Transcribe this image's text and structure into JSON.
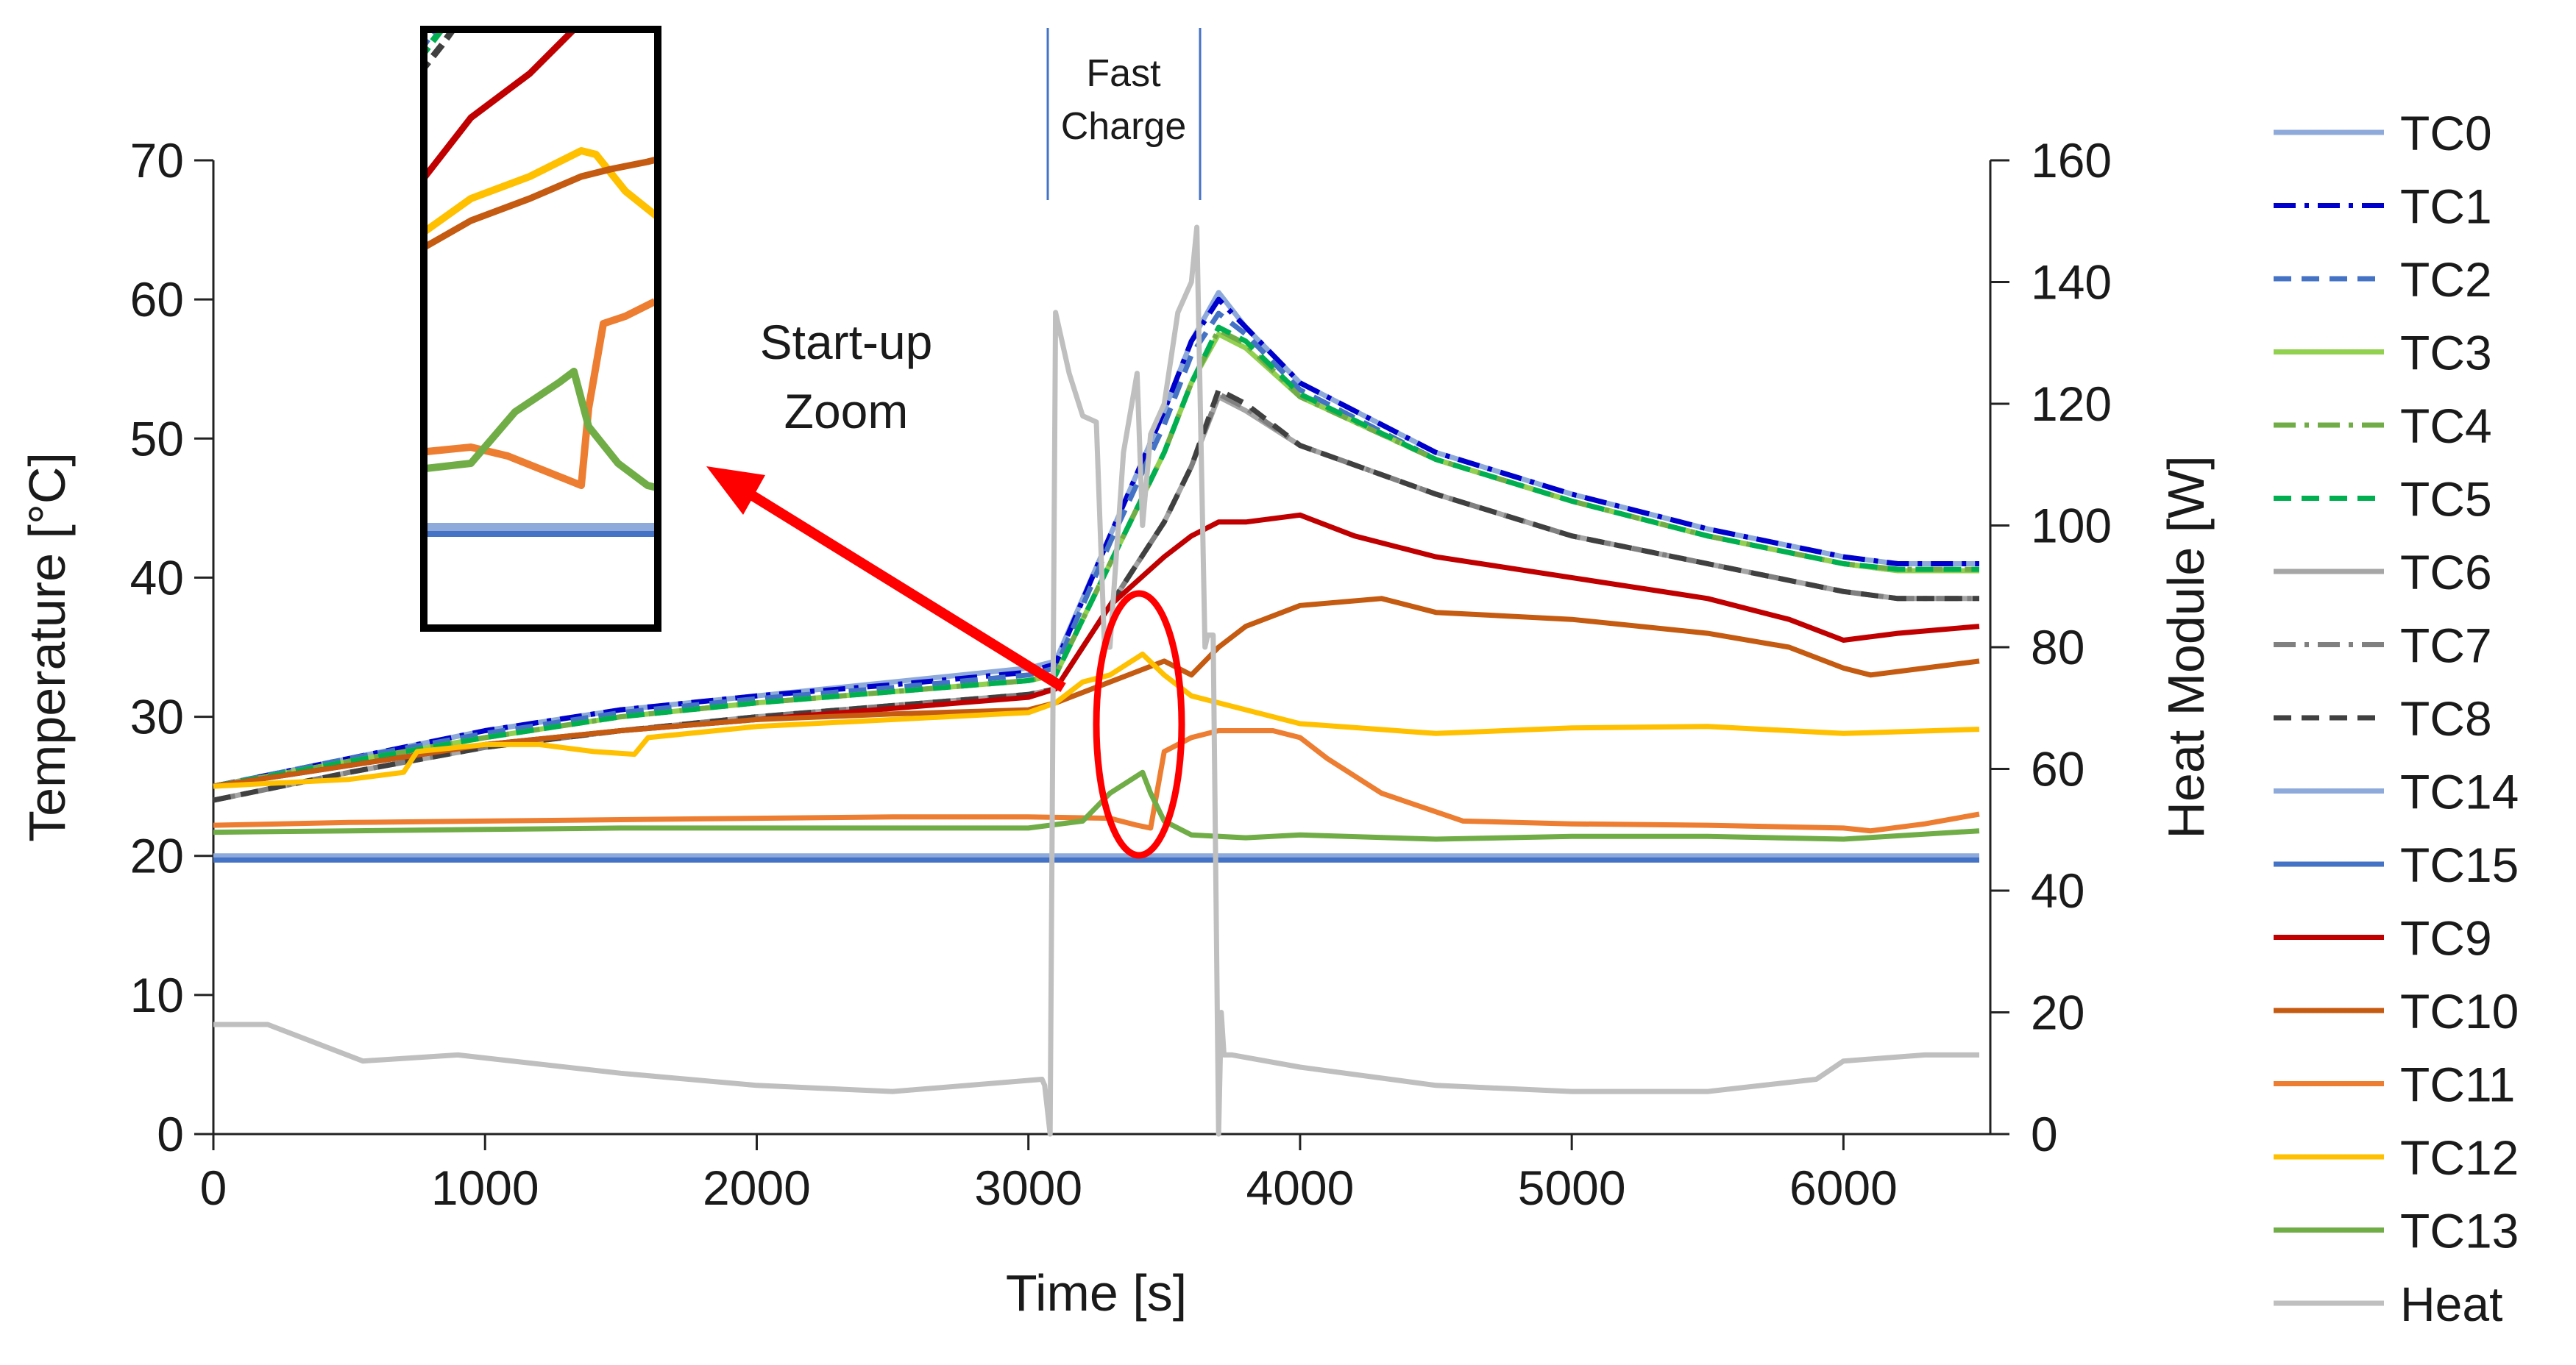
{
  "chart_data": {
    "type": "line",
    "title": "",
    "xlabel": "Time [s]",
    "ylabel": "Temperature [°C]",
    "y2label": "Heat Module [W]",
    "xlim": [
      0,
      6500
    ],
    "ylim": [
      0,
      70
    ],
    "y2lim": [
      0,
      160
    ],
    "x_ticks": [
      0,
      1000,
      2000,
      3000,
      4000,
      5000,
      6000
    ],
    "y_ticks": [
      0,
      10,
      20,
      30,
      40,
      50,
      60,
      70
    ],
    "y2_ticks": [
      0,
      20,
      40,
      60,
      80,
      100,
      120,
      140,
      160
    ],
    "legend_position": "right",
    "series": [
      {
        "name": "TC0",
        "axis": "left",
        "color": "#8eaadb",
        "dash": "solid",
        "x": [
          0,
          500,
          1000,
          1500,
          2000,
          2500,
          3000,
          3100,
          3300,
          3500,
          3600,
          3700,
          3800,
          4000,
          4500,
          5000,
          5500,
          6000,
          6200,
          6500
        ],
        "values": [
          25,
          27,
          29,
          30.5,
          31.5,
          32.5,
          33.5,
          34,
          43,
          52,
          57,
          60.5,
          58,
          54,
          49,
          46,
          43.5,
          41.5,
          41,
          41
        ]
      },
      {
        "name": "TC1",
        "axis": "left",
        "color": "#0000cc",
        "dash": "dashdot",
        "x": [
          0,
          500,
          1000,
          1500,
          2000,
          2500,
          3000,
          3100,
          3300,
          3500,
          3600,
          3700,
          3800,
          4000,
          4500,
          5000,
          5500,
          6000,
          6200,
          6500
        ],
        "values": [
          25,
          27,
          29,
          30.5,
          31.5,
          32.3,
          33.2,
          33.8,
          43,
          52,
          57,
          60,
          58,
          54,
          49,
          46,
          43.5,
          41.5,
          41,
          41
        ]
      },
      {
        "name": "TC2",
        "axis": "left",
        "color": "#4472c4",
        "dash": "dash",
        "x": [
          0,
          500,
          1000,
          1500,
          2000,
          2500,
          3000,
          3100,
          3300,
          3500,
          3600,
          3700,
          3800,
          4000,
          4500,
          5000,
          5500,
          6000,
          6200,
          6500
        ],
        "values": [
          25,
          27,
          28.8,
          30.3,
          31.3,
          32.1,
          33,
          33.5,
          42.5,
          51,
          56,
          59,
          57.5,
          53.5,
          48.5,
          45.5,
          43,
          41,
          40.5,
          40.5
        ]
      },
      {
        "name": "TC3",
        "axis": "left",
        "color": "#92d050",
        "dash": "solid",
        "x": [
          0,
          500,
          1000,
          1500,
          2000,
          2500,
          3000,
          3100,
          3300,
          3500,
          3600,
          3700,
          3800,
          4000,
          4500,
          5000,
          5500,
          6000,
          6200,
          6500
        ],
        "values": [
          25,
          26.8,
          28.5,
          30,
          31,
          31.8,
          32.6,
          33,
          41,
          49,
          54,
          57.5,
          56.5,
          53,
          48.5,
          45.5,
          43,
          41,
          40.5,
          40.5
        ]
      },
      {
        "name": "TC4",
        "axis": "left",
        "color": "#70ad47",
        "dash": "dashdot",
        "x": [
          0,
          500,
          1000,
          1500,
          2000,
          2500,
          3000,
          3100,
          3300,
          3500,
          3600,
          3700,
          3800,
          4000,
          4500,
          5000,
          5500,
          6000,
          6200,
          6500
        ],
        "values": [
          25,
          26.8,
          28.5,
          30,
          31,
          31.8,
          32.6,
          33,
          41,
          49,
          54,
          57.8,
          56.8,
          53,
          48.5,
          45.5,
          43,
          41,
          40.6,
          40.6
        ]
      },
      {
        "name": "TC5",
        "axis": "left",
        "color": "#00b050",
        "dash": "dash",
        "x": [
          0,
          500,
          1000,
          1500,
          2000,
          2500,
          3000,
          3100,
          3300,
          3500,
          3600,
          3700,
          3800,
          4000,
          4500,
          5000,
          5500,
          6000,
          6200,
          6500
        ],
        "values": [
          25,
          26.8,
          28.5,
          30,
          31,
          31.8,
          32.6,
          33,
          41,
          49,
          54,
          58,
          57,
          53.2,
          48.5,
          45.5,
          43,
          41,
          40.6,
          40.6
        ]
      },
      {
        "name": "TC6",
        "axis": "left",
        "color": "#a6a6a6",
        "dash": "solid",
        "x": [
          0,
          500,
          1000,
          1500,
          2000,
          2500,
          3000,
          3100,
          3300,
          3500,
          3600,
          3700,
          3800,
          4000,
          4500,
          5000,
          5500,
          6000,
          6200,
          6500
        ],
        "values": [
          24,
          26,
          27.8,
          29,
          30,
          30.8,
          31.6,
          32,
          38,
          44,
          48,
          53,
          52,
          49.5,
          46,
          43,
          41,
          39,
          38.5,
          38.5
        ]
      },
      {
        "name": "TC7",
        "axis": "left",
        "color": "#808080",
        "dash": "dashdot",
        "x": [
          0,
          500,
          1000,
          1500,
          2000,
          2500,
          3000,
          3100,
          3300,
          3500,
          3600,
          3700,
          3800,
          4000,
          4500,
          5000,
          5500,
          6000,
          6200,
          6500
        ],
        "values": [
          24,
          26,
          27.8,
          29,
          30,
          30.8,
          31.6,
          32,
          38,
          44,
          48,
          53.2,
          52.2,
          49.5,
          46,
          43,
          41,
          39,
          38.5,
          38.5
        ]
      },
      {
        "name": "TC8",
        "axis": "left",
        "color": "#404040",
        "dash": "dash",
        "x": [
          0,
          500,
          1000,
          1500,
          2000,
          2500,
          3000,
          3100,
          3300,
          3500,
          3600,
          3700,
          3800,
          4000,
          4500,
          5000,
          5500,
          6000,
          6200,
          6500
        ],
        "values": [
          24,
          26,
          27.8,
          29,
          30,
          30.8,
          31.6,
          32,
          38,
          44,
          48,
          53.5,
          52.5,
          49.5,
          46,
          43,
          41,
          39,
          38.5,
          38.5
        ]
      },
      {
        "name": "TC14",
        "axis": "left",
        "color": "#8eaadb",
        "dash": "solid",
        "x": [
          0,
          1000,
          2000,
          3000,
          4000,
          5000,
          6000,
          6500
        ],
        "values": [
          20,
          20,
          20,
          20,
          20,
          20,
          20,
          20
        ]
      },
      {
        "name": "TC15",
        "axis": "left",
        "color": "#4472c4",
        "dash": "solid",
        "x": [
          0,
          1000,
          2000,
          3000,
          4000,
          5000,
          6000,
          6500
        ],
        "values": [
          19.7,
          19.7,
          19.7,
          19.7,
          19.7,
          19.7,
          19.7,
          19.7
        ]
      },
      {
        "name": "TC9",
        "axis": "left",
        "color": "#c00000",
        "dash": "solid",
        "x": [
          0,
          500,
          1000,
          1500,
          2000,
          2500,
          3000,
          3100,
          3300,
          3500,
          3600,
          3700,
          3800,
          4000,
          4200,
          4500,
          5000,
          5500,
          5800,
          6000,
          6200,
          6500
        ],
        "values": [
          25,
          26.5,
          28,
          29,
          29.8,
          30.6,
          31.4,
          32,
          38,
          41.5,
          43,
          44,
          44,
          44.5,
          43,
          41.5,
          40,
          38.5,
          37,
          35.5,
          36,
          36.5
        ]
      },
      {
        "name": "TC10",
        "axis": "left",
        "color": "#c55a11",
        "dash": "solid",
        "x": [
          0,
          500,
          1000,
          1500,
          2000,
          2500,
          3000,
          3100,
          3300,
          3500,
          3600,
          3700,
          3800,
          4000,
          4300,
          4500,
          5000,
          5500,
          5800,
          6000,
          6100,
          6500
        ],
        "values": [
          25,
          26.5,
          28,
          29,
          29.8,
          30.2,
          30.5,
          31,
          32.5,
          34,
          33,
          35,
          36.5,
          38,
          38.5,
          37.5,
          37,
          36,
          35,
          33.5,
          33,
          34
        ]
      },
      {
        "name": "TC11",
        "axis": "left",
        "color": "#ed7d31",
        "dash": "solid",
        "x": [
          0,
          500,
          1000,
          1500,
          2000,
          2500,
          3000,
          3300,
          3400,
          3450,
          3500,
          3600,
          3700,
          3900,
          4000,
          4100,
          4300,
          4600,
          5000,
          5500,
          6000,
          6100,
          6300,
          6500
        ],
        "values": [
          22.2,
          22.4,
          22.5,
          22.6,
          22.7,
          22.8,
          22.8,
          22.7,
          22.2,
          22,
          27.5,
          28.5,
          29,
          29,
          28.5,
          27,
          24.5,
          22.5,
          22.3,
          22.2,
          22,
          21.8,
          22.3,
          23
        ]
      },
      {
        "name": "TC12",
        "axis": "left",
        "color": "#ffc000",
        "dash": "solid",
        "x": [
          0,
          500,
          700,
          750,
          1000,
          1200,
          1400,
          1550,
          1600,
          2000,
          2500,
          3000,
          3100,
          3200,
          3300,
          3420,
          3500,
          3600,
          3800,
          4000,
          4500,
          5000,
          5500,
          6000,
          6500
        ],
        "values": [
          25,
          25.5,
          26,
          27.5,
          28,
          28,
          27.5,
          27.3,
          28.5,
          29.3,
          29.8,
          30.3,
          31,
          32.5,
          33,
          34.5,
          33,
          31.5,
          30.5,
          29.5,
          28.8,
          29.2,
          29.3,
          28.8,
          29.1
        ]
      },
      {
        "name": "TC13",
        "axis": "left",
        "color": "#70ad47",
        "dash": "solid",
        "x": [
          0,
          500,
          1000,
          1500,
          2000,
          2500,
          3000,
          3200,
          3300,
          3420,
          3450,
          3500,
          3600,
          3800,
          4000,
          4500,
          5000,
          5500,
          6000,
          6500
        ],
        "values": [
          21.7,
          21.8,
          21.9,
          22,
          22,
          22,
          22,
          22.5,
          24.5,
          26,
          24.5,
          22.5,
          21.5,
          21.3,
          21.5,
          21.2,
          21.4,
          21.4,
          21.2,
          21.8
        ]
      },
      {
        "name": "Heat",
        "axis": "right",
        "color": "#bfbfbf",
        "dash": "solid",
        "x": [
          0,
          200,
          550,
          900,
          1500,
          2000,
          2500,
          3050,
          3060,
          3080,
          3100,
          3150,
          3200,
          3250,
          3280,
          3300,
          3350,
          3400,
          3420,
          3450,
          3500,
          3550,
          3600,
          3620,
          3650,
          3660,
          3680,
          3700,
          3710,
          3720,
          3750,
          4000,
          4500,
          5000,
          5500,
          5900,
          6000,
          6300,
          6500
        ],
        "values": [
          18,
          18,
          12,
          13,
          10,
          8,
          7,
          9,
          8,
          0,
          135,
          125,
          118,
          117,
          80,
          80,
          112,
          125,
          100,
          115,
          120,
          135,
          140,
          149,
          80,
          82,
          82,
          0,
          20,
          13,
          13,
          11,
          8,
          7,
          7,
          9,
          12,
          13,
          13
        ]
      }
    ],
    "annotations": {
      "fast_charge": "Fast\nCharge",
      "startup_zoom": "Start-up\nZoom"
    }
  }
}
